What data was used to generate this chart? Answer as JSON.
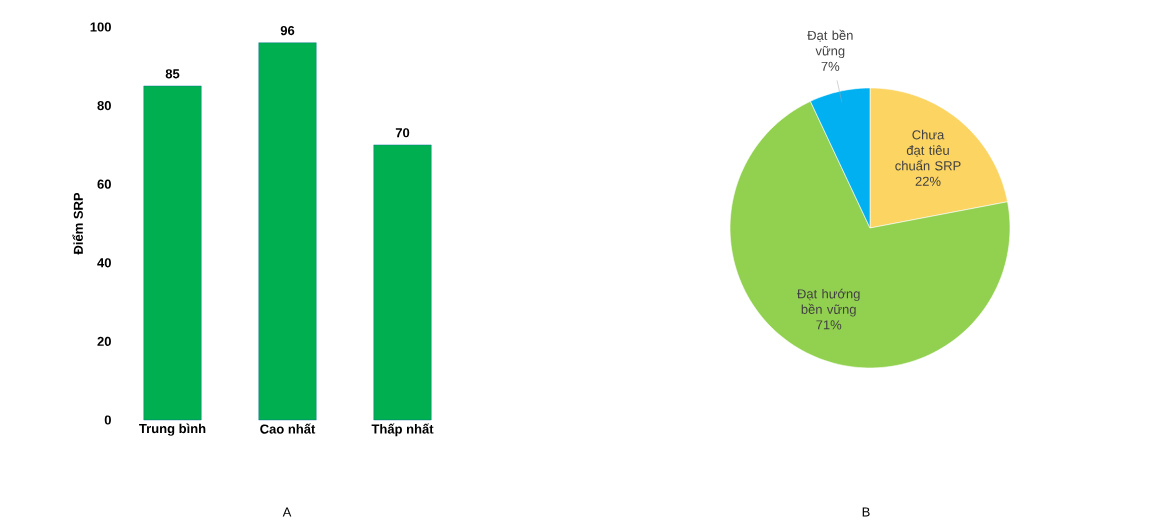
{
  "chart_data": [
    {
      "type": "bar",
      "ylabel": "Điểm SRP",
      "categories": [
        "Trung bình",
        "Cao nhất",
        "Thấp nhất"
      ],
      "values": [
        85,
        96,
        70
      ],
      "color": "#00b050",
      "ylim": [
        0,
        100
      ],
      "yticks": [
        0,
        20,
        40,
        60,
        80,
        100
      ],
      "data_labels": true,
      "annotations": [
        "A"
      ]
    },
    {
      "type": "pie",
      "categories": [
        "Chưa đạt tiêu chuẩn SRP",
        "Đạt hướng bền vững",
        "Đạt bền vững"
      ],
      "values": [
        22,
        71,
        7
      ],
      "value_labels": [
        "22%",
        "71%",
        "7%"
      ],
      "colors": [
        "#fcd462",
        "#92d050",
        "#00b0f0"
      ],
      "annotations": [
        "B"
      ]
    }
  ]
}
